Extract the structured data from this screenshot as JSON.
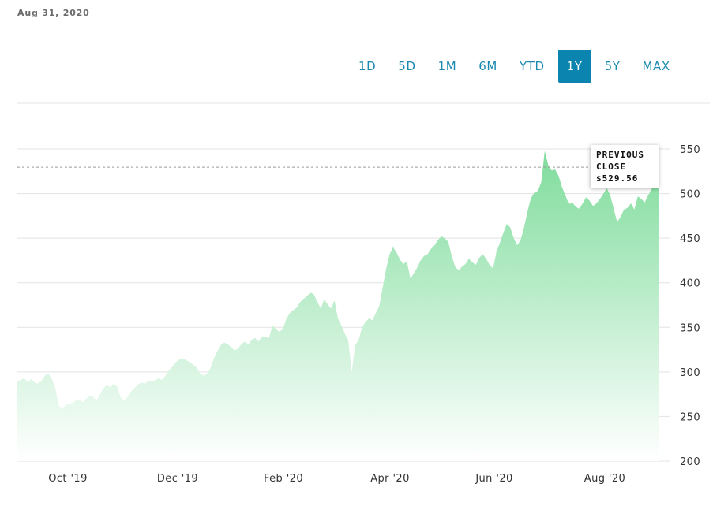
{
  "header": {
    "date": "Aug 31, 2020"
  },
  "range_tabs": [
    {
      "label": "1D",
      "active": false
    },
    {
      "label": "5D",
      "active": false
    },
    {
      "label": "1M",
      "active": false
    },
    {
      "label": "6M",
      "active": false
    },
    {
      "label": "YTD",
      "active": false
    },
    {
      "label": "1Y",
      "active": true
    },
    {
      "label": "5Y",
      "active": false
    },
    {
      "label": "MAX",
      "active": false
    }
  ],
  "tooltip": {
    "line1": "PREVIOUS",
    "line2": "CLOSE",
    "value": "$529.56"
  },
  "colors": {
    "accent": "#0c84b0",
    "area_top": "#7fdc9c",
    "area_bottom": "#ffffff",
    "grid": "#e3e3e3"
  },
  "chart_data": {
    "type": "area",
    "x_tick_labels": [
      "Oct '19",
      "Dec '19",
      "Feb '20",
      "Apr '20",
      "Jun '20",
      "Aug '20"
    ],
    "y_ticks": [
      200,
      250,
      300,
      350,
      400,
      450,
      500,
      550
    ],
    "ylim": [
      200,
      550
    ],
    "previous_close": 529.56,
    "grid": true,
    "series": [
      {
        "values": [
          289,
          291,
          293,
          288,
          292,
          288,
          287,
          290,
          296,
          298,
          292,
          282,
          262,
          258,
          263,
          264,
          265,
          268,
          269,
          266,
          270,
          273,
          272,
          268,
          275,
          282,
          285,
          283,
          287,
          283,
          271,
          268,
          272,
          278,
          282,
          286,
          288,
          287,
          290,
          289,
          291,
          293,
          291,
          296,
          302,
          306,
          311,
          314,
          315,
          313,
          311,
          308,
          305,
          298,
          296,
          298,
          304,
          315,
          323,
          330,
          333,
          331,
          328,
          324,
          326,
          331,
          334,
          331,
          336,
          338,
          334,
          340,
          339,
          338,
          352,
          348,
          345,
          348,
          359,
          366,
          369,
          372,
          378,
          382,
          385,
          389,
          387,
          379,
          371,
          381,
          376,
          371,
          380,
          360,
          352,
          343,
          335,
          300,
          330,
          336,
          350,
          356,
          360,
          358,
          366,
          374,
          395,
          416,
          432,
          440,
          434,
          426,
          421,
          424,
          405,
          410,
          417,
          425,
          430,
          432,
          438,
          442,
          448,
          452,
          450,
          446,
          430,
          418,
          414,
          418,
          421,
          427,
          423,
          420,
          428,
          432,
          427,
          420,
          416,
          435,
          445,
          456,
          466,
          462,
          450,
          442,
          448,
          462,
          480,
          495,
          501,
          503,
          513,
          548,
          532,
          526,
          527,
          520,
          507,
          498,
          488,
          490,
          485,
          483,
          489,
          496,
          492,
          486,
          489,
          494,
          500,
          506,
          498,
          483,
          468,
          474,
          482,
          484,
          489,
          482,
          497,
          494,
          490,
          498,
          505,
          512,
          512
        ]
      }
    ]
  }
}
